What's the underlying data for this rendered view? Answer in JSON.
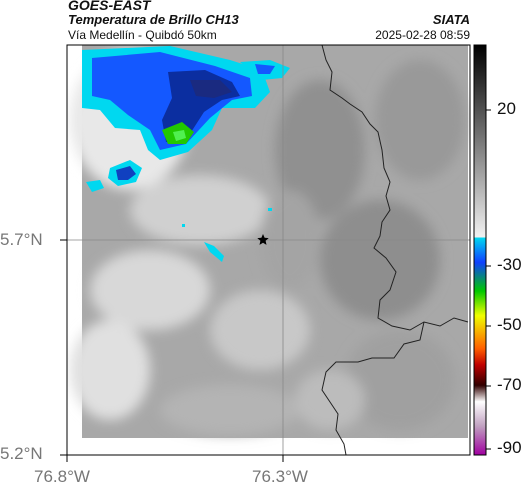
{
  "header": {
    "satellite": "GOES-EAST",
    "product": "Temperatura de Brillo CH13",
    "region": "Vía Medellín - Quibdó 50km",
    "source": "SIATA",
    "datetime": "2025-02-28 08:59"
  },
  "map": {
    "lat_labels": [
      "5.7°N",
      "5.2°N"
    ],
    "lon_labels": [
      "76.8°W",
      "76.3°W"
    ],
    "marker": "star-marker",
    "basemap": "department-boundaries"
  },
  "colorbar": {
    "tick_labels": [
      "20",
      "-30",
      "-50",
      "-70",
      "-90"
    ],
    "stops": [
      "#000000",
      "#ffffff",
      "#00c8ff",
      "#0040ff",
      "#00ff00",
      "#ffff00",
      "#ff0000",
      "#400000",
      "#ff00ff"
    ]
  }
}
